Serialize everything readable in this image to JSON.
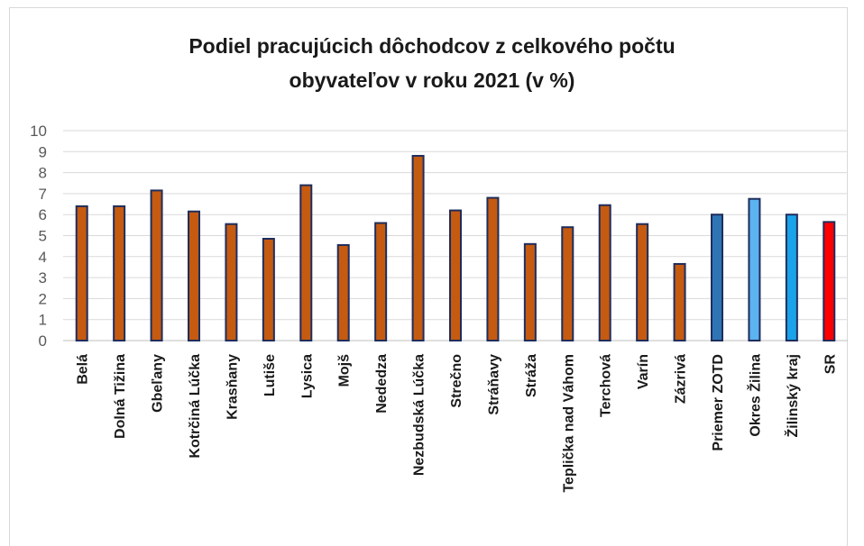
{
  "chart_data": {
    "type": "bar",
    "title_lines": [
      "Podiel pracujúcich  dôchodcov  z celkového počtu",
      "obyvateľov v roku 2021 (v %)"
    ],
    "xlabel": "",
    "ylabel": "",
    "ylim": [
      0,
      10
    ],
    "yticks": [
      0,
      1,
      2,
      3,
      4,
      5,
      6,
      7,
      8,
      9,
      10
    ],
    "grid": true,
    "legend": "none",
    "categories": [
      "Belá",
      "Dolná Tižina",
      "Gbeľany",
      "Kotrčiná Lúčka",
      "Krasňany",
      "Lutiše",
      "Lysica",
      "Mojš",
      "Nededza",
      "Nezbudská Lúčka",
      "Strečno",
      "Stráňavy",
      "Stráža",
      "Teplička nad Váhom",
      "Terchová",
      "Varín",
      "Zázrivá",
      "Priemer ZOTD",
      "Okres Žilina",
      "Žilinský kraj",
      "SR"
    ],
    "values": [
      6.4,
      6.4,
      7.15,
      6.15,
      5.55,
      4.85,
      7.4,
      4.55,
      5.6,
      8.8,
      6.2,
      6.8,
      4.6,
      5.4,
      6.45,
      5.55,
      3.65,
      6.0,
      6.75,
      6.0,
      5.65
    ],
    "colors": [
      "#c55a11",
      "#c55a11",
      "#c55a11",
      "#c55a11",
      "#c55a11",
      "#c55a11",
      "#c55a11",
      "#c55a11",
      "#c55a11",
      "#c55a11",
      "#c55a11",
      "#c55a11",
      "#c55a11",
      "#c55a11",
      "#c55a11",
      "#c55a11",
      "#c55a11",
      "#2e75b6",
      "#5cb3f0",
      "#1aa3e8",
      "#ff0000"
    ],
    "bar_outline": "#1f2d5c"
  }
}
